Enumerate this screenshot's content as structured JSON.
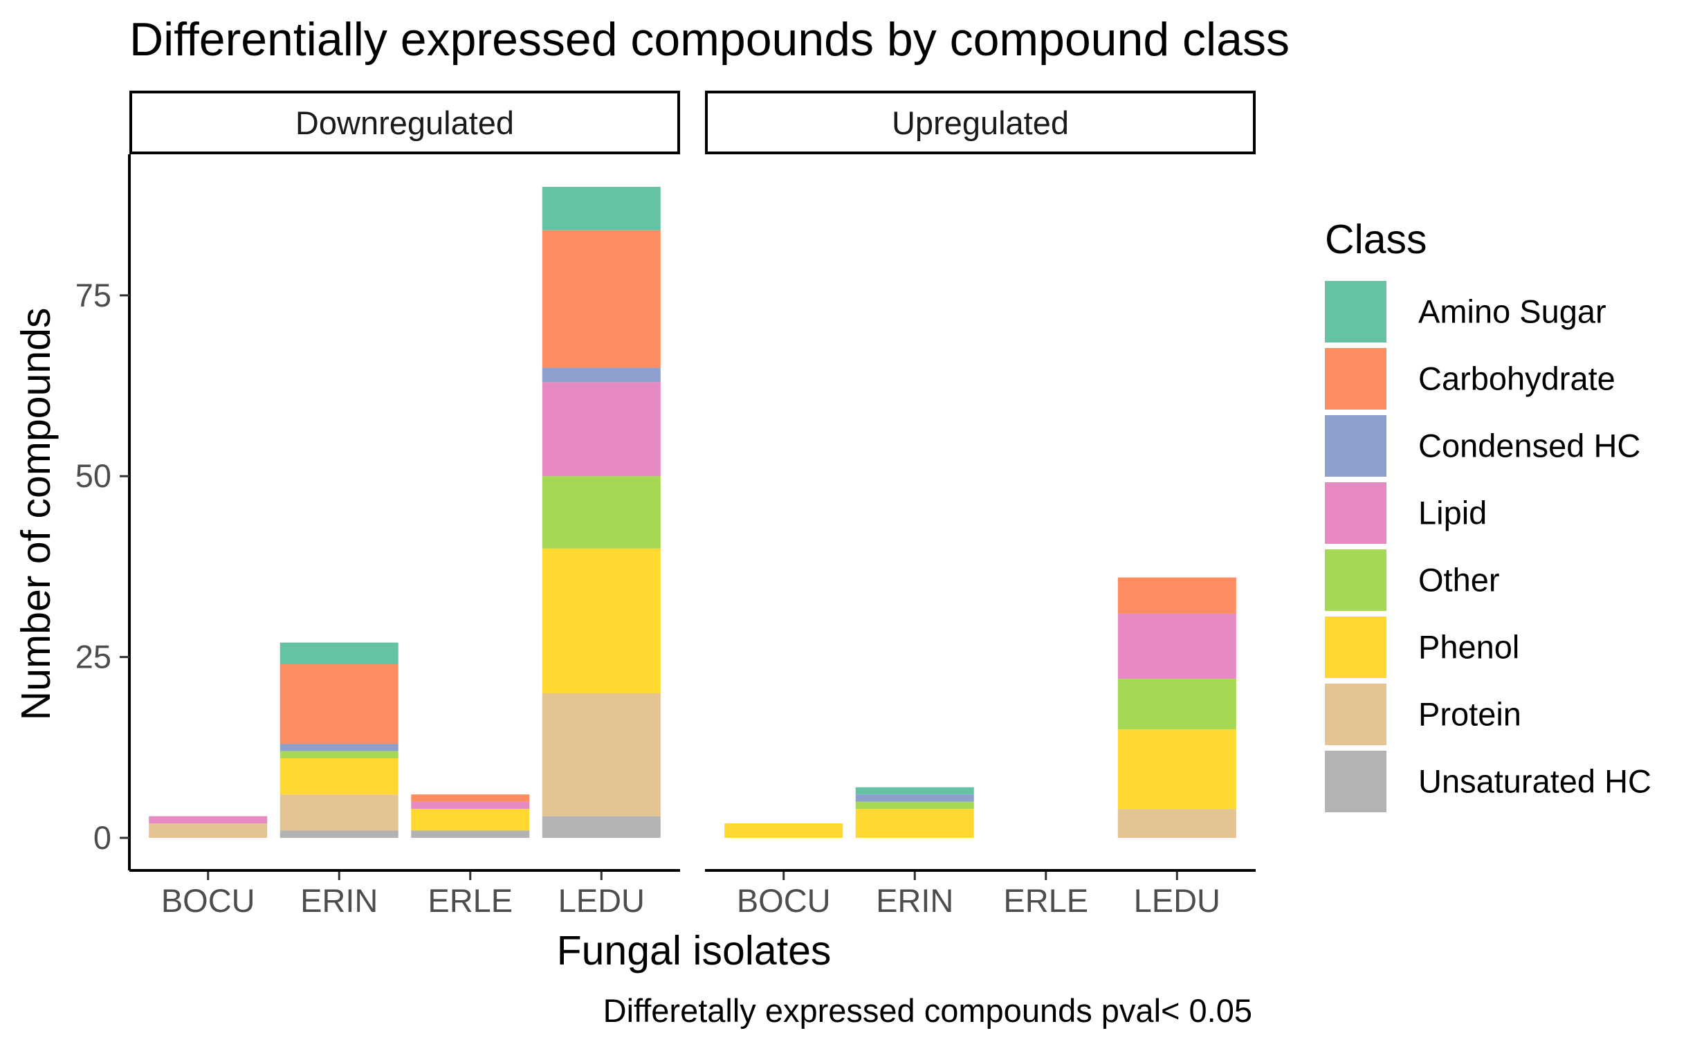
{
  "chart_data": {
    "type": "bar",
    "stacked": true,
    "title": "Differentially expressed compounds by compound class",
    "xlabel": "Fungal isolates",
    "ylabel": "Number of compounds",
    "caption": "Differetally expressed compounds pval< 0.05",
    "ylim": [
      0,
      90
    ],
    "yticks": [
      0,
      25,
      50,
      75
    ],
    "categories": [
      "BOCU",
      "ERIN",
      "ERLE",
      "LEDU"
    ],
    "legend": {
      "title": "Class",
      "position": "right"
    },
    "grid": false,
    "classes": [
      {
        "name": "Amino Sugar",
        "color": "#66C2A5"
      },
      {
        "name": "Carbohydrate",
        "color": "#FC8D62"
      },
      {
        "name": "Condensed HC",
        "color": "#8DA0CB"
      },
      {
        "name": "Lipid",
        "color": "#E78AC3"
      },
      {
        "name": "Other",
        "color": "#A6D854"
      },
      {
        "name": "Phenol",
        "color": "#FFD92F"
      },
      {
        "name": "Protein",
        "color": "#E5C494"
      },
      {
        "name": "Unsaturated HC",
        "color": "#B3B3B3"
      }
    ],
    "panels": [
      {
        "label": "Downregulated",
        "values": {
          "Unsaturated HC": [
            0,
            1,
            1,
            3
          ],
          "Protein": [
            2,
            5,
            0,
            17
          ],
          "Phenol": [
            0,
            5,
            3,
            20
          ],
          "Other": [
            0,
            1,
            0,
            10
          ],
          "Lipid": [
            1,
            0,
            1,
            13
          ],
          "Condensed HC": [
            0,
            1,
            0,
            2
          ],
          "Carbohydrate": [
            0,
            11,
            1,
            19
          ],
          "Amino Sugar": [
            0,
            3,
            0,
            6
          ]
        }
      },
      {
        "label": "Upregulated",
        "values": {
          "Unsaturated HC": [
            0,
            0,
            0,
            0
          ],
          "Protein": [
            0,
            0,
            0,
            4
          ],
          "Phenol": [
            2,
            4,
            0,
            11
          ],
          "Other": [
            0,
            1,
            0,
            7
          ],
          "Lipid": [
            0,
            0,
            0,
            9
          ],
          "Condensed HC": [
            0,
            1,
            0,
            0
          ],
          "Carbohydrate": [
            0,
            0,
            0,
            5
          ],
          "Amino Sugar": [
            0,
            1,
            0,
            0
          ]
        }
      }
    ]
  }
}
